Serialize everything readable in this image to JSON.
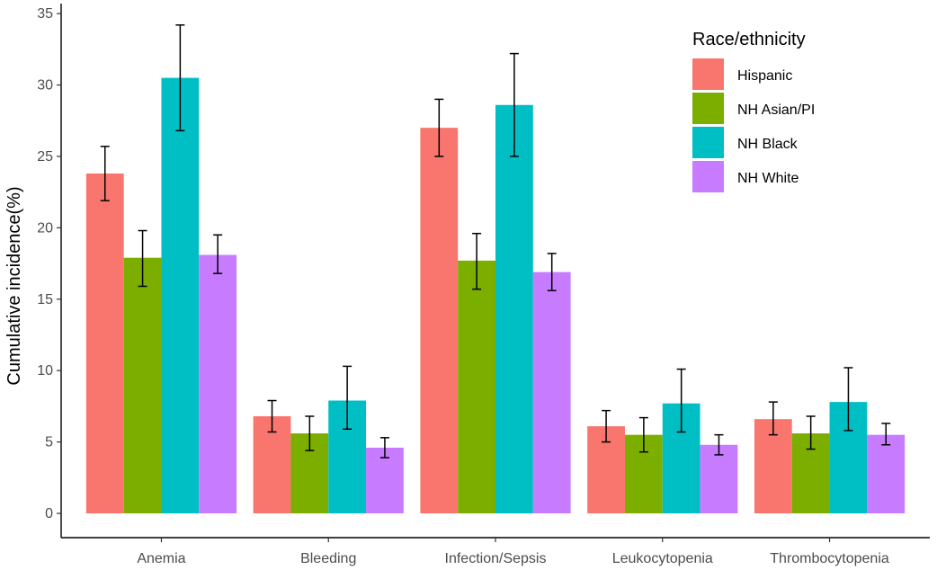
{
  "chart_data": {
    "type": "bar",
    "title": "",
    "xlabel": "",
    "ylabel": "Cumulative incidence(%)",
    "ylim": [
      -1.7,
      35.7
    ],
    "yticks": [
      0,
      5,
      10,
      15,
      20,
      25,
      30,
      35
    ],
    "grid": false,
    "legend": {
      "title": "Race/ethnicity",
      "position": "top-right"
    },
    "categories": [
      "Anemia",
      "Bleeding",
      "Infection/Sepsis",
      "Leukocytopenia",
      "Thrombocytopenia"
    ],
    "series": [
      {
        "name": "Hispanic",
        "color": "#F8766D",
        "values": [
          23.8,
          6.8,
          27.0,
          6.1,
          6.6
        ],
        "lower": [
          21.9,
          5.7,
          25.0,
          5.0,
          5.5
        ],
        "upper": [
          25.7,
          7.9,
          29.0,
          7.2,
          7.8
        ]
      },
      {
        "name": "NH Asian/PI",
        "color": "#7CAE00",
        "values": [
          17.9,
          5.6,
          17.7,
          5.5,
          5.6
        ],
        "lower": [
          15.9,
          4.4,
          15.7,
          4.3,
          4.5
        ],
        "upper": [
          19.8,
          6.8,
          19.6,
          6.7,
          6.8
        ]
      },
      {
        "name": "NH Black",
        "color": "#00BFC4",
        "values": [
          30.5,
          7.9,
          28.6,
          7.7,
          7.8
        ],
        "lower": [
          26.8,
          5.9,
          25.0,
          5.7,
          5.8
        ],
        "upper": [
          34.2,
          10.3,
          32.2,
          10.1,
          10.2
        ]
      },
      {
        "name": "NH White",
        "color": "#C77CFF",
        "values": [
          18.1,
          4.6,
          16.9,
          4.8,
          5.5
        ],
        "lower": [
          16.8,
          3.9,
          15.6,
          4.1,
          4.8
        ],
        "upper": [
          19.5,
          5.3,
          18.2,
          5.5,
          6.3
        ]
      }
    ]
  }
}
